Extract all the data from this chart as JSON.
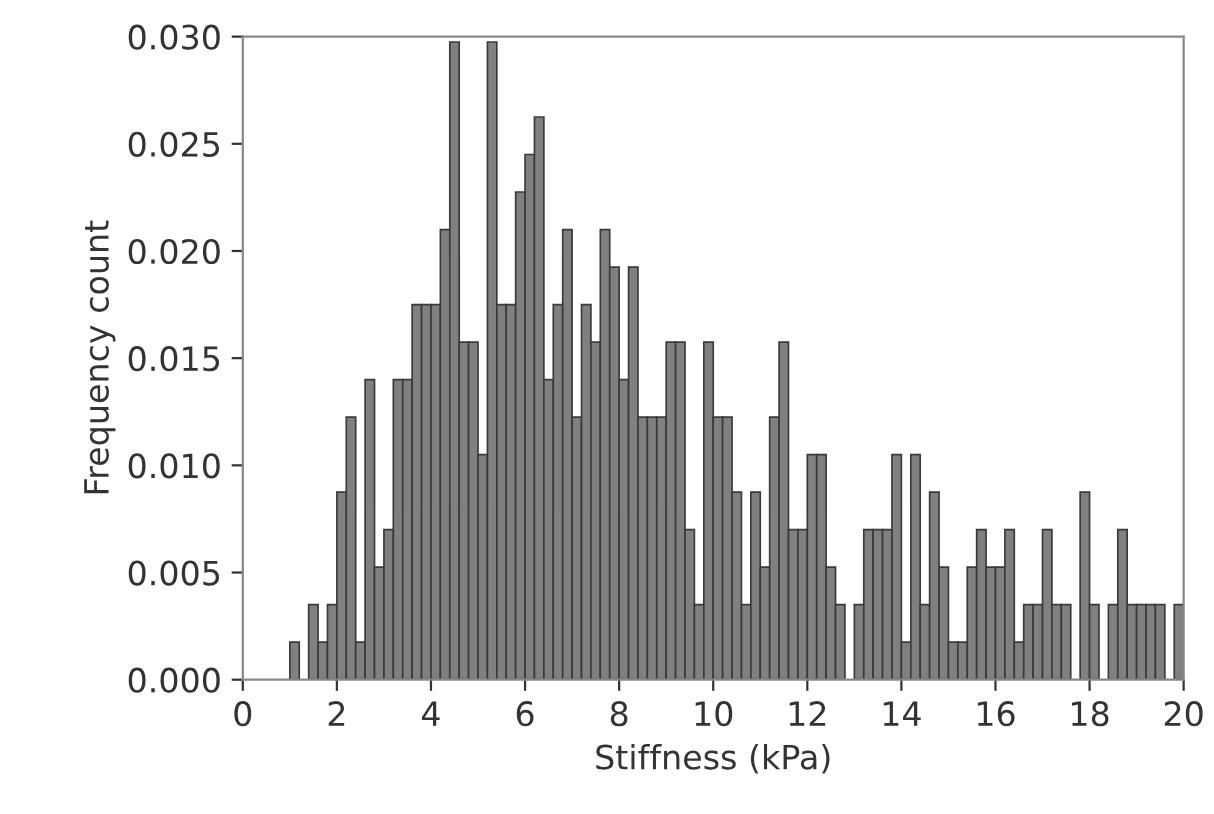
{
  "chart_data": {
    "type": "histogram",
    "xlabel": "Stiffness (kPa)",
    "ylabel": "Frequency count",
    "bins": [
      1.0,
      1.2,
      1.4,
      1.6,
      1.8,
      2.0,
      2.2,
      2.4,
      2.6,
      2.8,
      3.0,
      3.2,
      3.4,
      3.6,
      3.8,
      4.0,
      4.2,
      4.4,
      4.6,
      4.8,
      5.0,
      5.2,
      5.4,
      5.6,
      5.8,
      6.0,
      6.2,
      6.4,
      6.6,
      6.8,
      7.0,
      7.2,
      7.4,
      7.6,
      7.8,
      8.0,
      8.2,
      8.4,
      8.6,
      8.8,
      9.0,
      9.2,
      9.4,
      9.6,
      9.8,
      10.0,
      10.2,
      10.4,
      10.6,
      10.8,
      11.0,
      11.2,
      11.4,
      11.6,
      11.8,
      12.0,
      12.2,
      12.4,
      12.6,
      12.8,
      13.0,
      13.2,
      13.4,
      13.6,
      13.8,
      14.0,
      14.2,
      14.4,
      14.6,
      14.8,
      15.0,
      15.2,
      15.4,
      15.6,
      15.8,
      16.0,
      16.2,
      16.4,
      16.6,
      16.8,
      17.0,
      17.2,
      17.4,
      17.6,
      17.8,
      18.0,
      18.2,
      18.4,
      18.6,
      18.8,
      19.0,
      19.2,
      19.4,
      19.6,
      19.8,
      20.0
    ],
    "values": [
      0.00175,
      0,
      0.0035,
      0.00175,
      0.0035,
      0.00875,
      0.01225,
      0.00175,
      0.014,
      0.00525,
      0.007,
      0.014,
      0.014,
      0.0175,
      0.0175,
      0.0175,
      0.021,
      0.02975,
      0.01575,
      0.01575,
      0.0105,
      0.02975,
      0.0175,
      0.0175,
      0.02275,
      0.0245,
      0.02625,
      0.014,
      0.0175,
      0.021,
      0.01225,
      0.0175,
      0.01575,
      0.021,
      0.01925,
      0.014,
      0.01925,
      0.01225,
      0.01225,
      0.01225,
      0.01575,
      0.01575,
      0.007,
      0.0035,
      0.01575,
      0.01225,
      0.01225,
      0.00875,
      0.0035,
      0.00875,
      0.00525,
      0.01225,
      0.01575,
      0.007,
      0.007,
      0.0105,
      0.0105,
      0.00525,
      0.0035,
      0,
      0.0035,
      0.007,
      0.007,
      0.007,
      0.0105,
      0.00175,
      0.0105,
      0.0035,
      0.00875,
      0.00525,
      0.00175,
      0.00175,
      0.00525,
      0.007,
      0.00525,
      0.00525,
      0.007,
      0.00175,
      0.0035,
      0.0035,
      0.007,
      0.0035,
      0.0035,
      0,
      0.00875,
      0.0035,
      0,
      0.0035,
      0.007,
      0.0035,
      0.0035,
      0.0035,
      0.0035,
      0,
      0.0035
    ],
    "color": "#808080",
    "xlim": [
      0,
      20
    ],
    "xticks": [
      0,
      2,
      4,
      6,
      8,
      10,
      12,
      14,
      16,
      18,
      20
    ],
    "ylim": [
      0,
      0.03
    ],
    "yticks": [
      {
        "value": 0,
        "label": "0.000"
      },
      {
        "value": 0.005,
        "label": "0.005"
      },
      {
        "value": 0.01,
        "label": "0.010"
      },
      {
        "value": 0.015,
        "label": "0.015"
      },
      {
        "value": 0.02,
        "label": "0.020"
      },
      {
        "value": 0.025,
        "label": "0.025"
      },
      {
        "value": 0.03,
        "label": "0.030"
      }
    ],
    "grid": false,
    "legend": false
  }
}
